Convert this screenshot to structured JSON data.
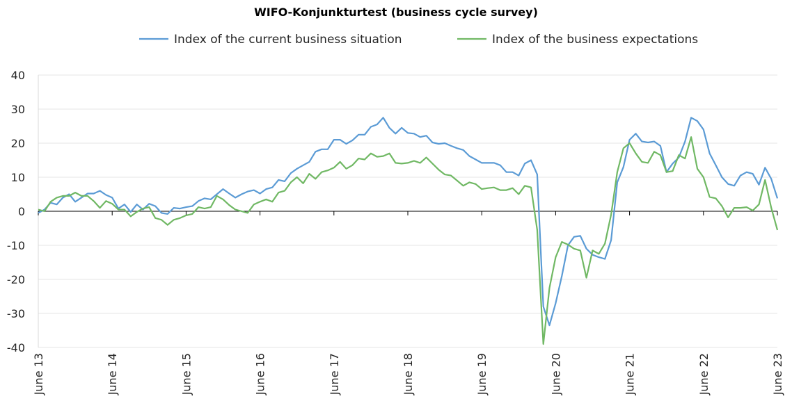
{
  "chart_data": {
    "type": "line",
    "title": "WIFO-Konjunkturtest (business cycle survey)",
    "xlabel": "",
    "ylabel": "",
    "ylim": [
      -40,
      40
    ],
    "yticks": [
      40,
      30,
      20,
      10,
      0,
      -10,
      -20,
      -30,
      -40
    ],
    "xlim": [
      "2013-06",
      "2023-06"
    ],
    "xtick_labels": [
      "June 13",
      "June 14",
      "June 15",
      "June 16",
      "June 17",
      "June 18",
      "June 19",
      "June 20",
      "June 21",
      "June 22",
      "June 23"
    ],
    "grid": "horizontal",
    "legend_position": "top",
    "series": [
      {
        "name": "Index of the current business situation",
        "color": "#5B9BD5",
        "points": [
          [
            "2013-06",
            -0.5
          ],
          [
            "2013-07",
            0.5
          ],
          [
            "2013-08",
            2.5
          ],
          [
            "2013-09",
            2.0
          ],
          [
            "2013-10",
            4.0
          ],
          [
            "2013-11",
            5.0
          ],
          [
            "2013-12",
            2.8
          ],
          [
            "2014-01",
            4.0
          ],
          [
            "2014-02",
            5.2
          ],
          [
            "2014-03",
            5.2
          ],
          [
            "2014-04",
            6.0
          ],
          [
            "2014-05",
            4.8
          ],
          [
            "2014-06",
            4.0
          ],
          [
            "2014-07",
            0.8
          ],
          [
            "2014-08",
            2.0
          ],
          [
            "2014-09",
            -0.2
          ],
          [
            "2014-10",
            2.0
          ],
          [
            "2014-11",
            0.5
          ],
          [
            "2014-12",
            2.2
          ],
          [
            "2015-01",
            1.5
          ],
          [
            "2015-02",
            -0.5
          ],
          [
            "2015-03",
            -0.8
          ],
          [
            "2015-04",
            1.0
          ],
          [
            "2015-05",
            0.8
          ],
          [
            "2015-06",
            1.2
          ],
          [
            "2015-07",
            1.5
          ],
          [
            "2015-08",
            3.0
          ],
          [
            "2015-09",
            3.8
          ],
          [
            "2015-10",
            3.5
          ],
          [
            "2015-11",
            5.0
          ],
          [
            "2015-12",
            6.5
          ],
          [
            "2016-01",
            5.2
          ],
          [
            "2016-02",
            4.0
          ],
          [
            "2016-03",
            5.0
          ],
          [
            "2016-04",
            5.8
          ],
          [
            "2016-05",
            6.2
          ],
          [
            "2016-06",
            5.2
          ],
          [
            "2016-07",
            6.5
          ],
          [
            "2016-08",
            7.0
          ],
          [
            "2016-09",
            9.2
          ],
          [
            "2016-10",
            8.8
          ],
          [
            "2016-11",
            11.2
          ],
          [
            "2016-12",
            12.5
          ],
          [
            "2017-01",
            13.5
          ],
          [
            "2017-02",
            14.5
          ],
          [
            "2017-03",
            17.5
          ],
          [
            "2017-04",
            18.2
          ],
          [
            "2017-05",
            18.2
          ],
          [
            "2017-06",
            21.0
          ],
          [
            "2017-07",
            21.0
          ],
          [
            "2017-08",
            19.8
          ],
          [
            "2017-09",
            20.8
          ],
          [
            "2017-10",
            22.5
          ],
          [
            "2017-11",
            22.5
          ],
          [
            "2017-12",
            24.8
          ],
          [
            "2018-01",
            25.5
          ],
          [
            "2018-02",
            27.5
          ],
          [
            "2018-03",
            24.5
          ],
          [
            "2018-04",
            22.8
          ],
          [
            "2018-05",
            24.5
          ],
          [
            "2018-06",
            23.0
          ],
          [
            "2018-07",
            22.8
          ],
          [
            "2018-08",
            21.8
          ],
          [
            "2018-09",
            22.2
          ],
          [
            "2018-10",
            20.2
          ],
          [
            "2018-11",
            19.8
          ],
          [
            "2018-12",
            20.0
          ],
          [
            "2019-01",
            19.2
          ],
          [
            "2019-02",
            18.5
          ],
          [
            "2019-03",
            18.0
          ],
          [
            "2019-04",
            16.2
          ],
          [
            "2019-05",
            15.2
          ],
          [
            "2019-06",
            14.2
          ],
          [
            "2019-07",
            14.2
          ],
          [
            "2019-08",
            14.2
          ],
          [
            "2019-09",
            13.5
          ],
          [
            "2019-10",
            11.5
          ],
          [
            "2019-11",
            11.5
          ],
          [
            "2019-12",
            10.5
          ],
          [
            "2020-01",
            14.0
          ],
          [
            "2020-02",
            15.0
          ],
          [
            "2020-03",
            10.8
          ],
          [
            "2020-04",
            -28.0
          ],
          [
            "2020-05",
            -33.5
          ],
          [
            "2020-06",
            -27.0
          ],
          [
            "2020-07",
            -19.0
          ],
          [
            "2020-08",
            -10.0
          ],
          [
            "2020-09",
            -7.5
          ],
          [
            "2020-10",
            -7.2
          ],
          [
            "2020-11",
            -11.0
          ],
          [
            "2020-12",
            -12.8
          ],
          [
            "2021-01",
            -13.5
          ],
          [
            "2021-02",
            -14.0
          ],
          [
            "2021-03",
            -8.5
          ],
          [
            "2021-04",
            8.5
          ],
          [
            "2021-05",
            13.0
          ],
          [
            "2021-06",
            21.0
          ],
          [
            "2021-07",
            22.8
          ],
          [
            "2021-08",
            20.5
          ],
          [
            "2021-09",
            20.2
          ],
          [
            "2021-10",
            20.5
          ],
          [
            "2021-11",
            19.2
          ],
          [
            "2021-12",
            11.5
          ],
          [
            "2022-01",
            14.0
          ],
          [
            "2022-02",
            15.8
          ],
          [
            "2022-03",
            20.5
          ],
          [
            "2022-04",
            27.5
          ],
          [
            "2022-05",
            26.5
          ],
          [
            "2022-06",
            24.0
          ],
          [
            "2022-07",
            17.0
          ],
          [
            "2022-08",
            13.5
          ],
          [
            "2022-09",
            10.0
          ],
          [
            "2022-10",
            8.0
          ],
          [
            "2022-11",
            7.5
          ],
          [
            "2022-12",
            10.5
          ],
          [
            "2023-01",
            11.5
          ],
          [
            "2023-02",
            11.0
          ],
          [
            "2023-03",
            7.8
          ],
          [
            "2023-04",
            12.8
          ],
          [
            "2023-05",
            9.5
          ],
          [
            "2023-06",
            3.8
          ]
        ]
      },
      {
        "name": "Index of the business expectations",
        "color": "#70B864",
        "points": [
          [
            "2013-06",
            0.5
          ],
          [
            "2013-07",
            0.0
          ],
          [
            "2013-08",
            2.8
          ],
          [
            "2013-09",
            4.0
          ],
          [
            "2013-10",
            4.5
          ],
          [
            "2013-11",
            4.5
          ],
          [
            "2013-12",
            5.5
          ],
          [
            "2014-01",
            4.5
          ],
          [
            "2014-02",
            4.5
          ],
          [
            "2014-03",
            3.0
          ],
          [
            "2014-04",
            1.0
          ],
          [
            "2014-05",
            3.0
          ],
          [
            "2014-06",
            2.2
          ],
          [
            "2014-07",
            0.5
          ],
          [
            "2014-08",
            0.5
          ],
          [
            "2014-09",
            -1.5
          ],
          [
            "2014-10",
            -0.2
          ],
          [
            "2014-11",
            0.8
          ],
          [
            "2014-12",
            1.2
          ],
          [
            "2015-01",
            -2.0
          ],
          [
            "2015-02",
            -2.5
          ],
          [
            "2015-03",
            -4.0
          ],
          [
            "2015-04",
            -2.5
          ],
          [
            "2015-05",
            -2.0
          ],
          [
            "2015-06",
            -1.2
          ],
          [
            "2015-07",
            -0.8
          ],
          [
            "2015-08",
            1.2
          ],
          [
            "2015-09",
            0.8
          ],
          [
            "2015-10",
            1.2
          ],
          [
            "2015-11",
            4.5
          ],
          [
            "2015-12",
            3.5
          ],
          [
            "2016-01",
            1.8
          ],
          [
            "2016-02",
            0.5
          ],
          [
            "2016-03",
            0.0
          ],
          [
            "2016-04",
            -0.5
          ],
          [
            "2016-05",
            2.0
          ],
          [
            "2016-06",
            2.8
          ],
          [
            "2016-07",
            3.5
          ],
          [
            "2016-08",
            2.8
          ],
          [
            "2016-09",
            5.5
          ],
          [
            "2016-10",
            6.0
          ],
          [
            "2016-11",
            8.5
          ],
          [
            "2016-12",
            10.0
          ],
          [
            "2017-01",
            8.2
          ],
          [
            "2017-02",
            11.0
          ],
          [
            "2017-03",
            9.5
          ],
          [
            "2017-04",
            11.5
          ],
          [
            "2017-05",
            12.0
          ],
          [
            "2017-06",
            12.8
          ],
          [
            "2017-07",
            14.5
          ],
          [
            "2017-08",
            12.5
          ],
          [
            "2017-09",
            13.5
          ],
          [
            "2017-10",
            15.5
          ],
          [
            "2017-11",
            15.2
          ],
          [
            "2017-12",
            17.0
          ],
          [
            "2018-01",
            16.0
          ],
          [
            "2018-02",
            16.2
          ],
          [
            "2018-03",
            17.0
          ],
          [
            "2018-04",
            14.2
          ],
          [
            "2018-05",
            14.0
          ],
          [
            "2018-06",
            14.2
          ],
          [
            "2018-07",
            14.8
          ],
          [
            "2018-08",
            14.2
          ],
          [
            "2018-09",
            15.8
          ],
          [
            "2018-10",
            14.0
          ],
          [
            "2018-11",
            12.2
          ],
          [
            "2018-12",
            10.8
          ],
          [
            "2019-01",
            10.5
          ],
          [
            "2019-02",
            9.0
          ],
          [
            "2019-03",
            7.5
          ],
          [
            "2019-04",
            8.5
          ],
          [
            "2019-05",
            8.0
          ],
          [
            "2019-06",
            6.5
          ],
          [
            "2019-07",
            6.8
          ],
          [
            "2019-08",
            7.0
          ],
          [
            "2019-09",
            6.2
          ],
          [
            "2019-10",
            6.2
          ],
          [
            "2019-11",
            6.8
          ],
          [
            "2019-12",
            5.0
          ],
          [
            "2020-01",
            7.5
          ],
          [
            "2020-02",
            7.0
          ],
          [
            "2020-03",
            -5.5
          ],
          [
            "2020-04",
            -39.0
          ],
          [
            "2020-05",
            -22.5
          ],
          [
            "2020-06",
            -13.5
          ],
          [
            "2020-07",
            -9.0
          ],
          [
            "2020-08",
            -9.8
          ],
          [
            "2020-09",
            -11.0
          ],
          [
            "2020-10",
            -11.5
          ],
          [
            "2020-11",
            -19.5
          ],
          [
            "2020-12",
            -11.5
          ],
          [
            "2021-01",
            -12.5
          ],
          [
            "2021-02",
            -9.5
          ],
          [
            "2021-03",
            -1.0
          ],
          [
            "2021-04",
            11.5
          ],
          [
            "2021-05",
            18.5
          ],
          [
            "2021-06",
            20.0
          ],
          [
            "2021-07",
            17.0
          ],
          [
            "2021-08",
            14.5
          ],
          [
            "2021-09",
            14.2
          ],
          [
            "2021-10",
            17.5
          ],
          [
            "2021-11",
            16.5
          ],
          [
            "2021-12",
            11.5
          ],
          [
            "2022-01",
            11.8
          ],
          [
            "2022-02",
            16.5
          ],
          [
            "2022-03",
            15.5
          ],
          [
            "2022-04",
            21.8
          ],
          [
            "2022-05",
            12.5
          ],
          [
            "2022-06",
            10.0
          ],
          [
            "2022-07",
            4.2
          ],
          [
            "2022-08",
            3.8
          ],
          [
            "2022-09",
            1.5
          ],
          [
            "2022-10",
            -1.8
          ],
          [
            "2022-11",
            1.0
          ],
          [
            "2022-12",
            1.0
          ],
          [
            "2023-01",
            1.2
          ],
          [
            "2023-02",
            0.2
          ],
          [
            "2023-03",
            2.0
          ],
          [
            "2023-04",
            9.2
          ],
          [
            "2023-05",
            1.0
          ],
          [
            "2023-06",
            -5.5
          ]
        ]
      }
    ]
  }
}
